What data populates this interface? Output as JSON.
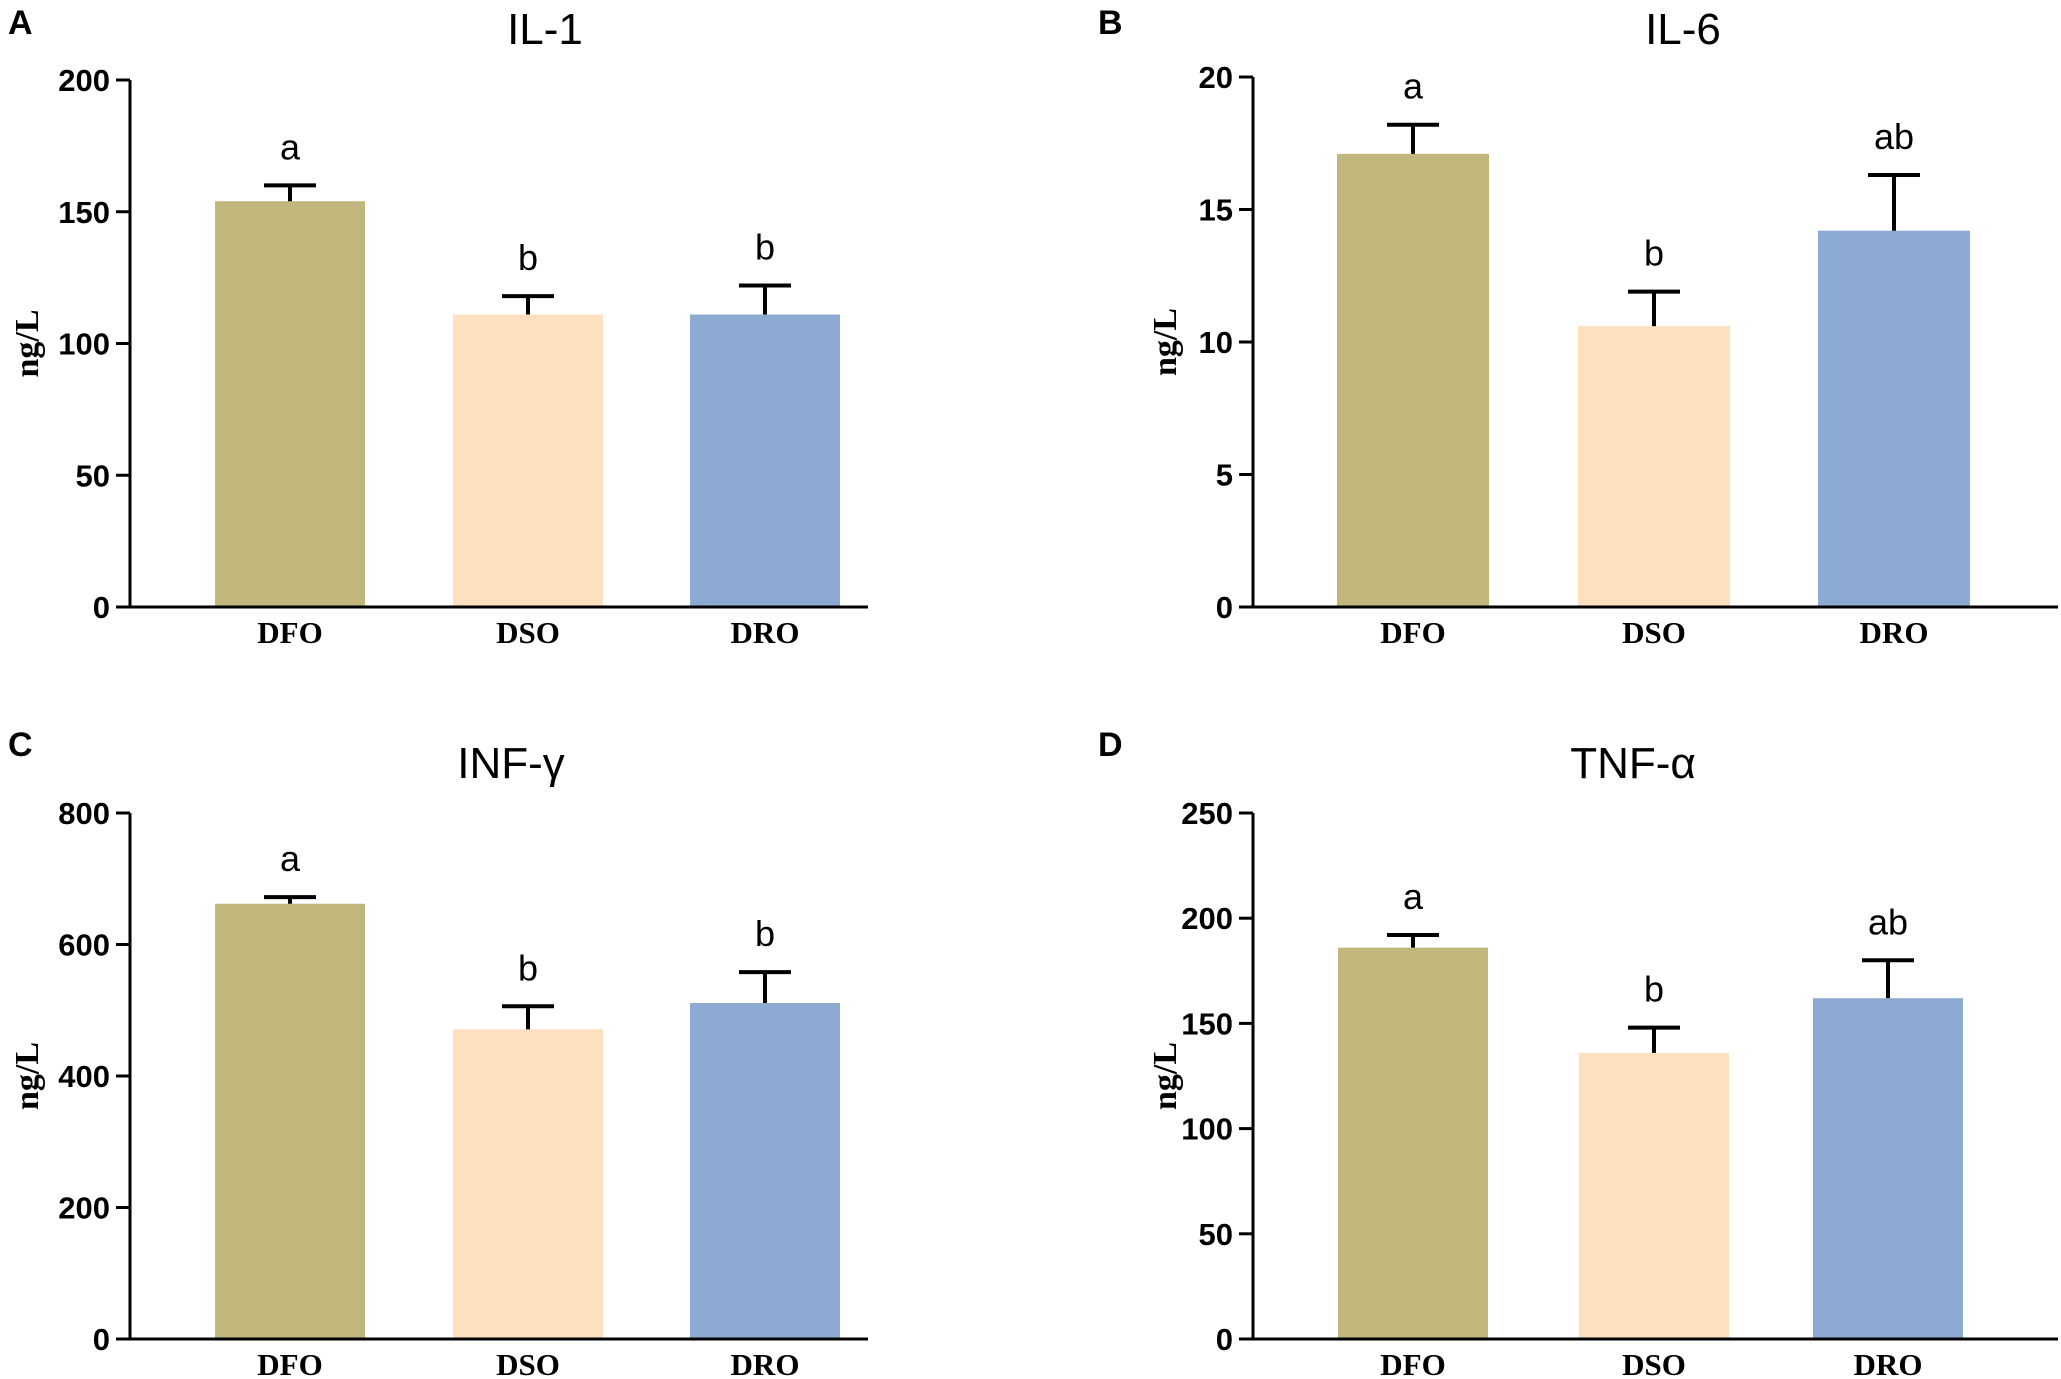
{
  "colors": {
    "DFO": "#c1b77d",
    "DSO": "#fde0c0",
    "DRO": "#8dabd2"
  },
  "chart_data": [
    {
      "panel": "A",
      "type": "bar",
      "title": "IL-1",
      "ylabel": "ng/L",
      "xlabel": "",
      "categories": [
        "DFO",
        "DSO",
        "DRO"
      ],
      "values": [
        154,
        111,
        111
      ],
      "errors": [
        6,
        7,
        11
      ],
      "significance": [
        "a",
        "b",
        "b"
      ],
      "ylim": [
        0,
        200
      ],
      "yticks": [
        0,
        50,
        100,
        150,
        200
      ]
    },
    {
      "panel": "B",
      "type": "bar",
      "title": "IL-6",
      "ylabel": "ng/L",
      "xlabel": "",
      "categories": [
        "DFO",
        "DSO",
        "DRO"
      ],
      "values": [
        17.1,
        10.6,
        14.2
      ],
      "errors": [
        1.1,
        1.3,
        2.1
      ],
      "significance": [
        "a",
        "b",
        "ab"
      ],
      "ylim": [
        0,
        20
      ],
      "yticks": [
        0,
        5,
        10,
        15,
        20
      ]
    },
    {
      "panel": "C",
      "type": "bar",
      "title": "INF-γ",
      "ylabel": "ng/L",
      "xlabel": "",
      "categories": [
        "DFO",
        "DSO",
        "DRO"
      ],
      "values": [
        662,
        471,
        511
      ],
      "errors": [
        10,
        35,
        47
      ],
      "significance": [
        "a",
        "b",
        "b"
      ],
      "ylim": [
        0,
        800
      ],
      "yticks": [
        0,
        200,
        400,
        600,
        800
      ]
    },
    {
      "panel": "D",
      "type": "bar",
      "title": "TNF-α",
      "ylabel": "ng/L",
      "xlabel": "",
      "categories": [
        "DFO",
        "DSO",
        "DRO"
      ],
      "values": [
        186,
        136,
        162
      ],
      "errors": [
        6,
        12,
        18
      ],
      "significance": [
        "a",
        "b",
        "ab"
      ],
      "ylim": [
        0,
        250
      ],
      "yticks": [
        0,
        50,
        100,
        150,
        200,
        250
      ]
    }
  ]
}
